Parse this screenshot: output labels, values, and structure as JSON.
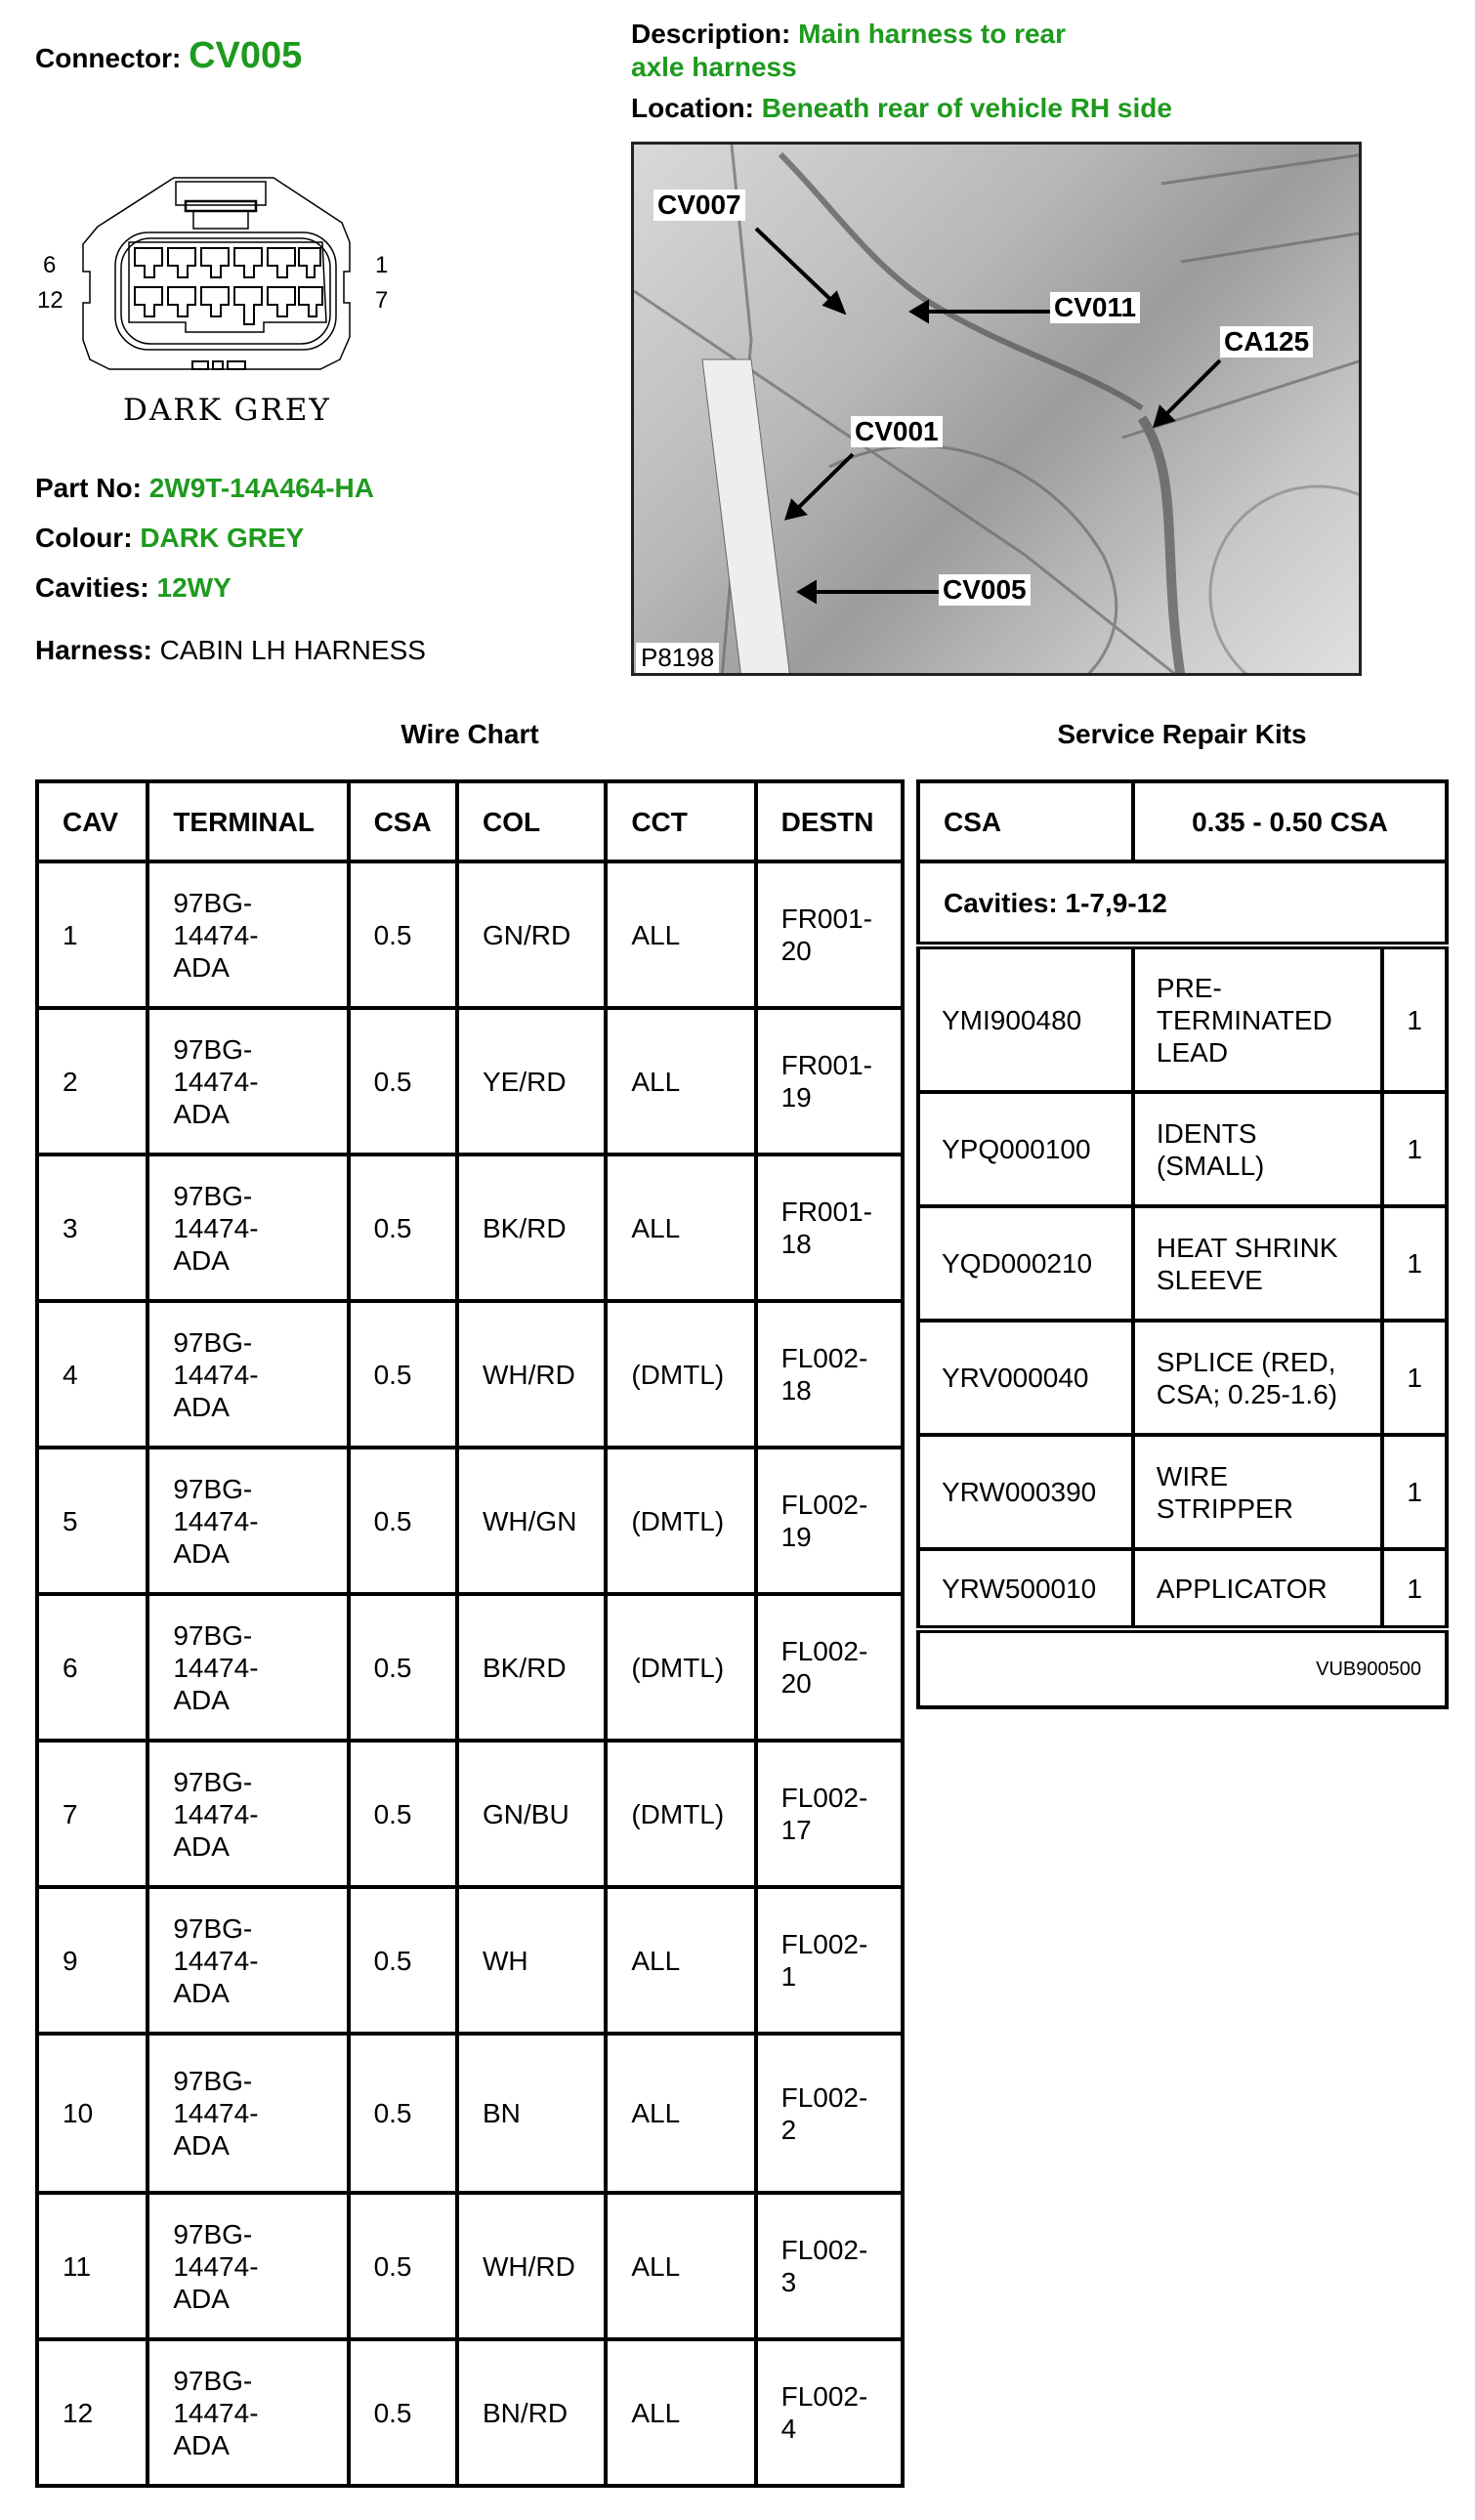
{
  "connector": {
    "label": "Connector:",
    "value": "CV005"
  },
  "description": {
    "label": "Description:",
    "value_line1": "Main harness to rear",
    "value_line2": "axle harness"
  },
  "location": {
    "label": "Location:",
    "value": "Beneath rear of vehicle RH side"
  },
  "connector_diagram": {
    "pin_labels": {
      "top_left": "6",
      "bottom_left": "12",
      "top_right": "1",
      "bottom_right": "7"
    },
    "colour_caption": "DARK GREY"
  },
  "part_no": {
    "label": "Part No:",
    "value": "2W9T-14A464-HA"
  },
  "colour": {
    "label": "Colour:",
    "value": "DARK GREY"
  },
  "cavities": {
    "label": "Cavities:",
    "value": "12WY"
  },
  "harness": {
    "label": "Harness:",
    "value": "CABIN LH HARNESS"
  },
  "photo": {
    "callouts": [
      "CV007",
      "CV011",
      "CA125",
      "CV001",
      "CV005"
    ],
    "reference": "P8198"
  },
  "accent_color": "#1e9a1e",
  "wire_chart": {
    "title": "Wire Chart",
    "headers": [
      "CAV",
      "TERMINAL",
      "CSA",
      "COL",
      "CCT",
      "DESTN"
    ],
    "rows": [
      [
        "1",
        "97BG-\n14474-\nADA",
        "0.5",
        "GN/RD",
        "ALL",
        "FR001-\n20"
      ],
      [
        "2",
        "97BG-\n14474-\nADA",
        "0.5",
        "YE/RD",
        "ALL",
        "FR001-\n19"
      ],
      [
        "3",
        "97BG-\n14474-\nADA",
        "0.5",
        "BK/RD",
        "ALL",
        "FR001-\n18"
      ],
      [
        "4",
        "97BG-\n14474-\nADA",
        "0.5",
        "WH/RD",
        "(DMTL)",
        "FL002-\n18"
      ],
      [
        "5",
        "97BG-\n14474-\nADA",
        "0.5",
        "WH/GN",
        "(DMTL)",
        "FL002-\n19"
      ],
      [
        "6",
        "97BG-\n14474-\nADA",
        "0.5",
        "BK/RD",
        "(DMTL)",
        "FL002-\n20"
      ],
      [
        "7",
        "97BG-\n14474-\nADA",
        "0.5",
        "GN/BU",
        "(DMTL)",
        "FL002-\n17"
      ],
      [
        "9",
        "97BG-\n14474-\nADA",
        "0.5",
        "WH",
        "ALL",
        "FL002-\n1"
      ],
      [
        "10",
        "97BG-\n14474-\nADA",
        "0.5",
        "BN",
        "ALL",
        "FL002-\n2"
      ],
      [
        "11",
        "97BG-\n14474-\nADA",
        "0.5",
        "WH/RD",
        "ALL",
        "FL002-\n3"
      ],
      [
        "12",
        "97BG-\n14474-\nADA",
        "0.5",
        "BN/RD",
        "ALL",
        "FL002-\n4"
      ]
    ]
  },
  "repair_kits": {
    "title": "Service Repair Kits",
    "header_csa": "CSA",
    "header_range": "0.35 - 0.50 CSA",
    "cavities": "Cavities: 1-7,9-12",
    "items": [
      [
        "YMI900480",
        "PRE-\nTERMINATED\nLEAD",
        "1"
      ],
      [
        "YPQ000100",
        "IDENTS\n(SMALL)",
        "1"
      ],
      [
        "YQD000210",
        "HEAT SHRINK\nSLEEVE",
        "1"
      ],
      [
        "YRV000040",
        "SPLICE (RED,\nCSA; 0.25-1.6)",
        "1"
      ],
      [
        "YRW000390",
        "WIRE\nSTRIPPER",
        "1"
      ],
      [
        "YRW500010",
        "APPLICATOR",
        "1"
      ]
    ],
    "footer": "VUB900500"
  }
}
